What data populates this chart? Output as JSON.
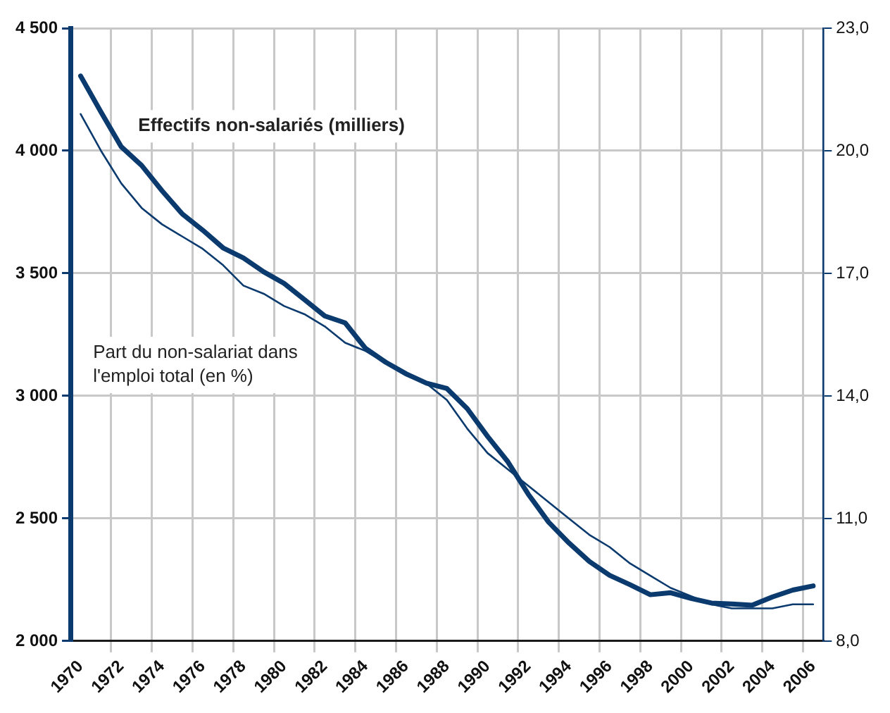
{
  "chart_data": {
    "type": "line",
    "categories": [
      "1970",
      null,
      "1972",
      null,
      "1974",
      null,
      "1976",
      null,
      "1978",
      null,
      "1980",
      null,
      "1982",
      null,
      "1984",
      null,
      "1986",
      null,
      "1988",
      null,
      "1990",
      null,
      "1992",
      null,
      "1994",
      null,
      "1996",
      null,
      "1998",
      null,
      "2000",
      null,
      "2002",
      null,
      "2004",
      null,
      "2006"
    ],
    "series": [
      {
        "name": "Effectifs non-salariés (milliers)",
        "color": "#0b3a6e",
        "values": [
          4305,
          4158,
          4016,
          3940,
          3837,
          3742,
          3676,
          3604,
          3563,
          3506,
          3459,
          3393,
          3326,
          3298,
          3194,
          3137,
          3090,
          3052,
          3030,
          2948,
          2835,
          2731,
          2599,
          2485,
          2400,
          2325,
          2268,
          2230,
          2189,
          2197,
          2174,
          2155,
          2151,
          2146,
          2180,
          2208,
          2225
        ]
      },
      {
        "name": "Part du non-salariat dans l'emploi total (en %)",
        "color": "#0b3a6e",
        "axis": "y2",
        "values": [
          20.9,
          20.0,
          19.2,
          18.6,
          18.2,
          17.9,
          17.6,
          17.2,
          16.7,
          16.5,
          16.2,
          16.0,
          15.7,
          15.3,
          15.1,
          14.8,
          14.5,
          14.3,
          13.9,
          13.2,
          12.6,
          12.2,
          11.8,
          11.4,
          11.0,
          10.6,
          10.3,
          9.9,
          9.6,
          9.3,
          9.1,
          8.9,
          8.8,
          8.8,
          8.8,
          8.9,
          8.9
        ]
      }
    ],
    "ylim": [
      2000,
      4500
    ],
    "yticks": [
      {
        "value": 2000,
        "label": "2 000"
      },
      {
        "value": 2500,
        "label": "2 500"
      },
      {
        "value": 3000,
        "label": "3 000"
      },
      {
        "value": 3500,
        "label": "3 500"
      },
      {
        "value": 4000,
        "label": "4 000"
      },
      {
        "value": 4500,
        "label": "4 500"
      }
    ],
    "y2lim": [
      8,
      23
    ],
    "y2ticks": [
      {
        "value": 8,
        "label": "8,0"
      },
      {
        "value": 11,
        "label": "11,0"
      },
      {
        "value": 14,
        "label": "14,0"
      },
      {
        "value": 17,
        "label": "17,0"
      },
      {
        "value": 20,
        "label": "20,0"
      },
      {
        "value": 23,
        "label": "23,0"
      }
    ],
    "grid": true,
    "legend": false,
    "marker": "none",
    "line_style": "solid"
  }
}
